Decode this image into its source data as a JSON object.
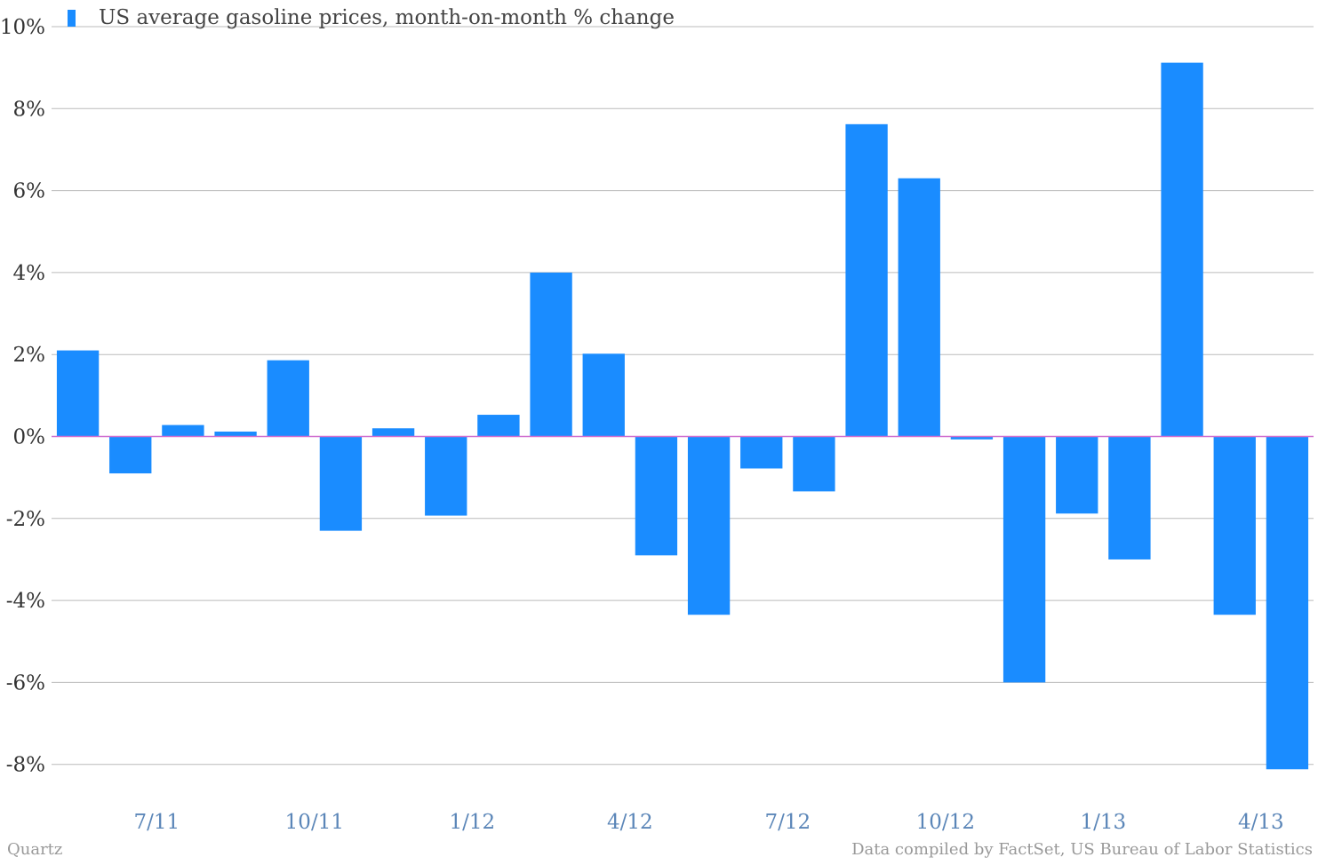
{
  "chart_data": {
    "type": "bar",
    "legend_position": "top-left",
    "grid": true,
    "series": [
      {
        "name": "US average gasoline prices, month-on-month % change",
        "color": "#1a8cff",
        "values": [
          2.1,
          -0.9,
          0.28,
          0.12,
          1.86,
          -2.3,
          0.2,
          -1.93,
          0.53,
          4.0,
          2.02,
          -2.9,
          -4.35,
          -0.78,
          -1.34,
          7.62,
          6.3,
          -0.07,
          -6.0,
          -1.88,
          -3.0,
          9.12,
          -4.35,
          -8.12
        ]
      }
    ],
    "ylim": [
      -9,
      10
    ],
    "yticks": [
      "-8%",
      "-6%",
      "-4%",
      "-2%",
      "0%",
      "2%",
      "4%",
      "6%",
      "8%",
      "10%"
    ],
    "ytick_values": [
      -8,
      -6,
      -4,
      -2,
      0,
      2,
      4,
      6,
      8,
      10
    ],
    "xtick_labels": [
      "7/11",
      "10/11",
      "1/12",
      "4/12",
      "7/12",
      "10/12",
      "1/13",
      "4/13"
    ],
    "xtick_bar_index": [
      1.5,
      4.5,
      7.5,
      10.5,
      13.5,
      16.5,
      19.5,
      22.5
    ],
    "zero_line_color": "#d070d0",
    "grid_color": "#bbbbbb",
    "xtick_color": "#5b86b8"
  },
  "footer": {
    "source_left": "Quartz",
    "source_right": "Data compiled by FactSet, US Bureau of Labor Statistics"
  }
}
